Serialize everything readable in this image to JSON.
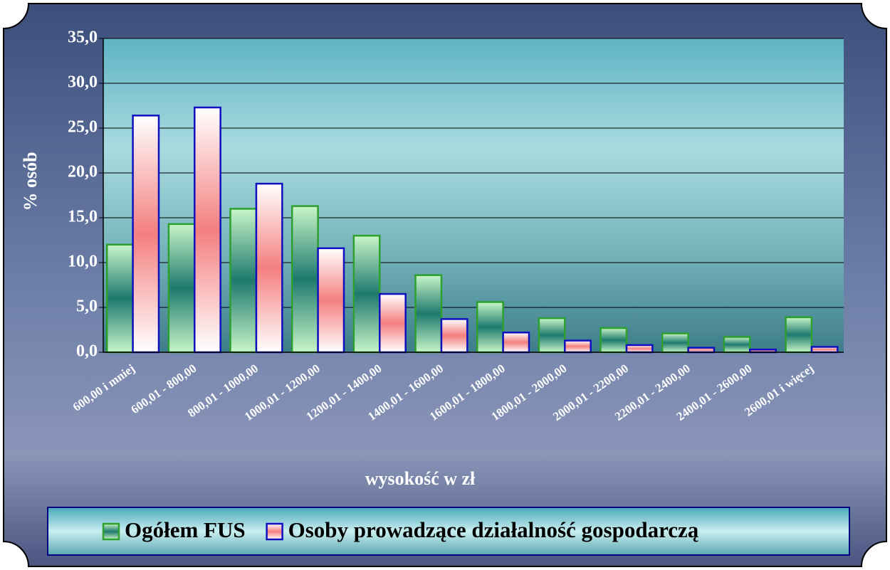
{
  "chart_data": {
    "type": "bar",
    "x_label": "wysokość w zł",
    "y_label": "% osób",
    "categories": [
      "600,00 i mniej",
      "600,01 - 800,00",
      "800,01 - 1000,00",
      "1000,01 - 1200,00",
      "1200,01 - 1400,00",
      "1400,01 - 1600,00",
      "1600,01 - 1800,00",
      "1800,01 - 2000,00",
      "2000,01 - 2200,00",
      "2200,01 - 2400,00",
      "2400,01 - 2600,00",
      "2600,01 i więcej"
    ],
    "series": [
      {
        "name": "Ogółem FUS",
        "color": "#1e7a6e",
        "values": [
          12.0,
          14.3,
          16.0,
          16.3,
          13.0,
          8.6,
          5.6,
          3.8,
          2.7,
          2.1,
          1.7,
          3.9
        ]
      },
      {
        "name": "Osoby prowadzące działalność gospodarczą",
        "color": "#f47f7f",
        "values": [
          26.4,
          27.3,
          18.8,
          11.6,
          6.5,
          3.7,
          2.2,
          1.3,
          0.8,
          0.5,
          0.3,
          0.6
        ]
      }
    ],
    "ylim": [
      0,
      35
    ],
    "yticks": [
      {
        "value": 0,
        "label": "0,0"
      },
      {
        "value": 5,
        "label": "5,0"
      },
      {
        "value": 10,
        "label": "10,0"
      },
      {
        "value": 15,
        "label": "15,0"
      },
      {
        "value": 20,
        "label": "20,0"
      },
      {
        "value": 25,
        "label": "25,0"
      },
      {
        "value": 30,
        "label": "30,0"
      },
      {
        "value": 35,
        "label": "35,0"
      }
    ],
    "grid": true,
    "legend": "bottom"
  }
}
